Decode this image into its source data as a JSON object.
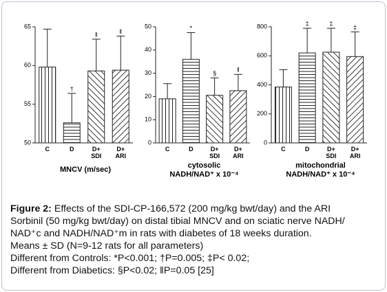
{
  "chart_data": [
    {
      "type": "bar",
      "categories": [
        "C",
        "D",
        "D+ SDI",
        "D+ ARI"
      ],
      "values": [
        59.8,
        52.6,
        59.3,
        59.4
      ],
      "errors": [
        4.9,
        3.8,
        4.1,
        4.4
      ],
      "annotations": [
        null,
        "†",
        "‖",
        "‖"
      ],
      "patterns": [
        "vertical",
        "horizontal",
        "backslash",
        "slash"
      ],
      "ylim": [
        50,
        65
      ],
      "yticks": [
        50,
        55,
        60,
        65
      ],
      "x_label": [
        "MNCV (m/sec)"
      ]
    },
    {
      "type": "bar",
      "categories": [
        "C",
        "D",
        "D+ SDI",
        "D+ ARI"
      ],
      "values": [
        19,
        36,
        20.5,
        22.5
      ],
      "errors": [
        6.5,
        11.5,
        7.5,
        7
      ],
      "annotations": [
        null,
        "*",
        "§",
        "‖"
      ],
      "patterns": [
        "vertical",
        "horizontal",
        "backslash",
        "slash"
      ],
      "ylim": [
        0,
        50
      ],
      "yticks": [
        0,
        10,
        20,
        30,
        40,
        50
      ],
      "x_label": [
        "cytosolic",
        "NADH/NAD⁺ x 10⁻⁴"
      ]
    },
    {
      "type": "bar",
      "categories": [
        "C",
        "D",
        "D+ SDI",
        "D+ ARI"
      ],
      "values": [
        385,
        620,
        625,
        595
      ],
      "errors": [
        120,
        170,
        165,
        170
      ],
      "annotations": [
        null,
        "‡",
        "‡",
        "‡"
      ],
      "patterns": [
        "vertical",
        "horizontal",
        "backslash",
        "slash"
      ],
      "ylim": [
        0,
        800
      ],
      "yticks": [
        0,
        200,
        400,
        600,
        800
      ],
      "x_label": [
        "mitochondrial",
        "NADH/NAD⁺ x 10⁻⁴"
      ]
    }
  ],
  "caption": {
    "label": "Figure 2:",
    "lines": [
      "Effects of the SDI-CP-166,572 (200 mg/kg bwt/day) and the ARI",
      "Sorbinil (50 mg/kg bwt/day) on distal tibial MNCV and on sciatic nerve NADH/",
      "NAD⁺c and NADH/NAD⁺m in rats with diabetes of 18 weeks duration.",
      "Means ± SD (N=9-12 rats for all parameters)",
      "Different from Controls: *P<0.001; †P=0.005; ‡P< 0.02;",
      "Different from Diabetics: §P<0.02; ‖P=0.05 [25]"
    ]
  }
}
